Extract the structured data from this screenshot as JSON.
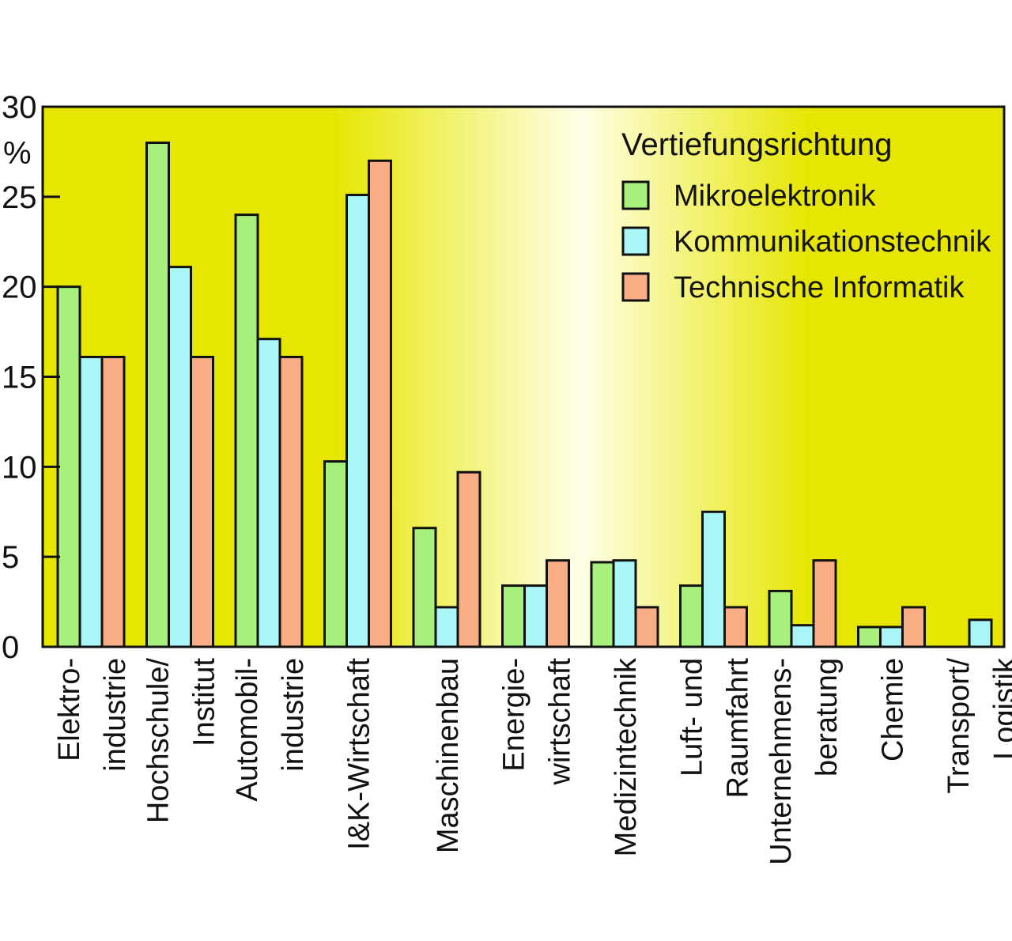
{
  "chart_data": {
    "type": "bar",
    "ylabel": "%",
    "ylim": [
      0,
      30
    ],
    "yticks": [
      0,
      5,
      10,
      15,
      20,
      25,
      30
    ],
    "grid": false,
    "legend_position": "top-right",
    "legend_title": "Vertiefungsrichtung",
    "categories": [
      [
        "Elektro-",
        "industrie"
      ],
      [
        "Hochschule/",
        "Institut"
      ],
      [
        "Automobil-",
        "industrie"
      ],
      [
        "I&K-Wirtschaft"
      ],
      [
        "Maschinenbau"
      ],
      [
        "Energie-",
        "wirtschaft"
      ],
      [
        "Medizintechnik"
      ],
      [
        "Luft- und",
        "Raumfahrt"
      ],
      [
        "Unternehmens-",
        "beratung"
      ],
      [
        "Chemie"
      ],
      [
        "Transport/",
        "Logistik"
      ]
    ],
    "series": [
      {
        "name": "Mikroelektronik",
        "color": "#a8f07c",
        "values": [
          20,
          28,
          24,
          10.3,
          6.6,
          3.4,
          4.7,
          3.4,
          3.1,
          1.1,
          0
        ]
      },
      {
        "name": "Kommunikationstechnik",
        "color": "#a8f6f6",
        "values": [
          16.1,
          21.1,
          17.1,
          25.1,
          2.2,
          3.4,
          4.8,
          7.5,
          1.2,
          1.1,
          1.5
        ]
      },
      {
        "name": "Technische Informatik",
        "color": "#f9ad84",
        "values": [
          16.1,
          16.1,
          16.1,
          27,
          9.7,
          4.8,
          2.2,
          2.2,
          4.8,
          2.2,
          0
        ]
      }
    ],
    "background": {
      "edge": "#e6e600",
      "center": "#ffffe8"
    }
  }
}
